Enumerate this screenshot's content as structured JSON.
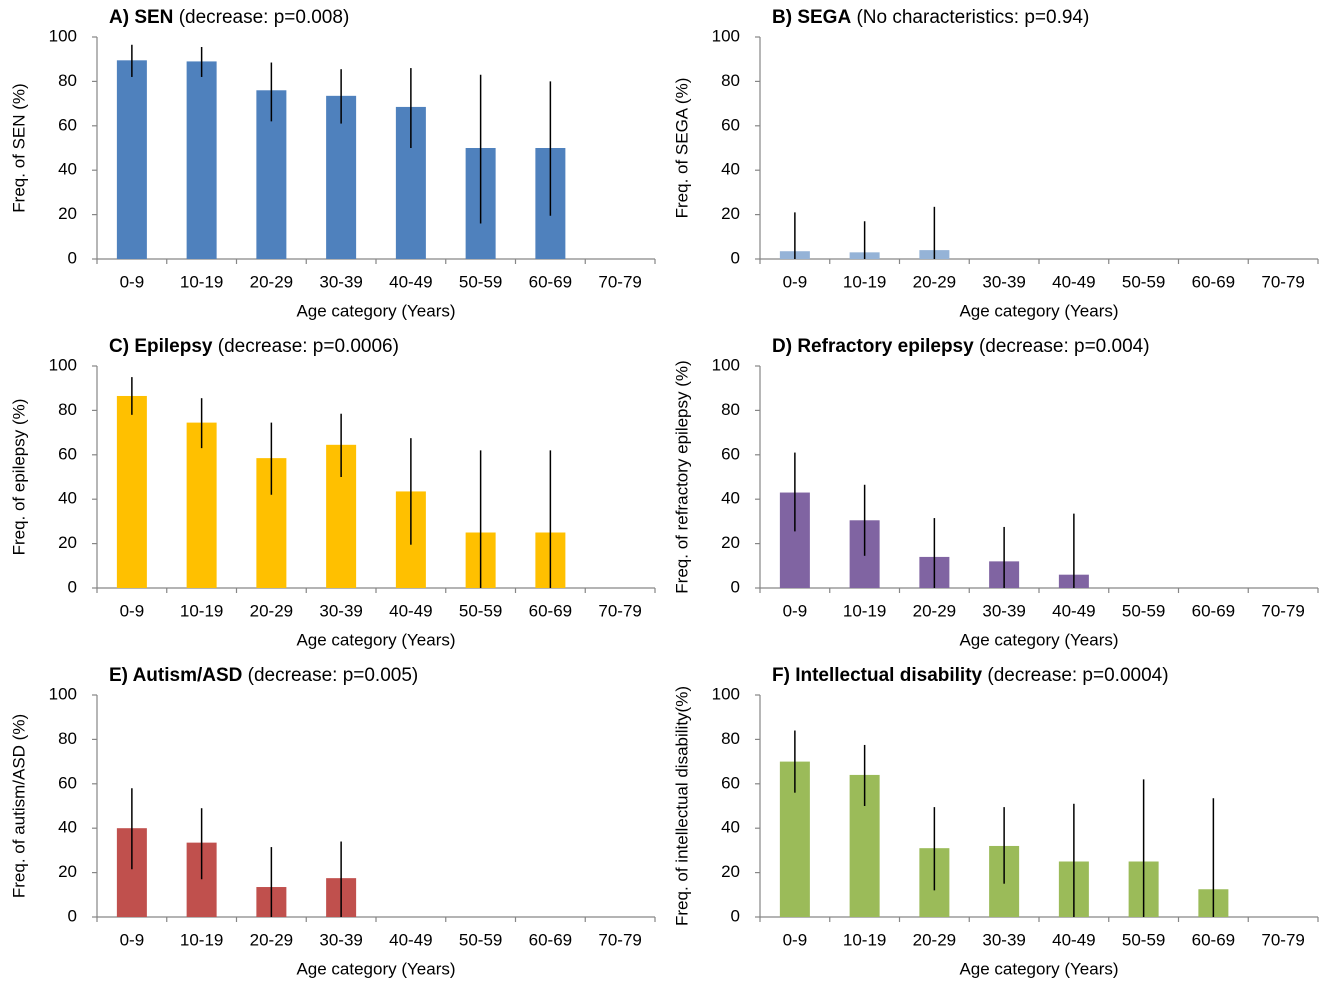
{
  "chart_data": [
    {
      "type": "bar",
      "title": "A) SEN",
      "subtitle": "(decrease: p=0.008)",
      "x_label": "Age category (Years)",
      "y_label": "Freq. of SEN (%)",
      "categories": [
        "0-9",
        "10-19",
        "20-29",
        "30-39",
        "40-49",
        "50-59",
        "60-69",
        "70-79"
      ],
      "values": [
        89.5,
        89,
        76,
        73.5,
        68.5,
        50,
        50,
        0
      ],
      "ci_low": [
        82,
        82,
        62,
        61,
        50,
        16,
        19.5,
        null
      ],
      "ci_high": [
        96.5,
        95.5,
        88.5,
        85.5,
        86,
        83,
        80,
        null
      ],
      "color": "#4f81bd",
      "ylim": [
        0,
        100
      ],
      "yticks": [
        0,
        20,
        40,
        60,
        80,
        100
      ]
    },
    {
      "type": "bar",
      "title": "B) SEGA",
      "subtitle": "(No characteristics: p=0.94)",
      "x_label": "Age category (Years)",
      "y_label": "Freq. of SEGA (%)",
      "categories": [
        "0-9",
        "10-19",
        "20-29",
        "30-39",
        "40-49",
        "50-59",
        "60-69",
        "70-79"
      ],
      "values": [
        3.5,
        3,
        4,
        0,
        0,
        0,
        0,
        0
      ],
      "ci_low": [
        0,
        0,
        0,
        null,
        null,
        null,
        null,
        null
      ],
      "ci_high": [
        21,
        17,
        23.5,
        null,
        null,
        null,
        null,
        null
      ],
      "color": "#95b3d7",
      "ylim": [
        0,
        100
      ],
      "yticks": [
        0,
        20,
        40,
        60,
        80,
        100
      ]
    },
    {
      "type": "bar",
      "title": "C) Epilepsy",
      "subtitle": "(decrease: p=0.0006)",
      "x_label": "Age category (Years)",
      "y_label": "Freq. of epilepsy (%)",
      "categories": [
        "0-9",
        "10-19",
        "20-29",
        "30-39",
        "40-49",
        "50-59",
        "60-69",
        "70-79"
      ],
      "values": [
        86.5,
        74.5,
        58.5,
        64.5,
        43.5,
        25,
        25,
        0
      ],
      "ci_low": [
        78,
        63,
        42,
        50,
        19.5,
        0,
        0,
        null
      ],
      "ci_high": [
        95,
        85.5,
        74.5,
        78.5,
        67.5,
        62,
        62,
        null
      ],
      "color": "#ffc000",
      "ylim": [
        0,
        100
      ],
      "yticks": [
        0,
        20,
        40,
        60,
        80,
        100
      ]
    },
    {
      "type": "bar",
      "title": "D) Refractory epilepsy",
      "subtitle": "(decrease: p=0.004)",
      "x_label": "Age category (Years)",
      "y_label": "Freq. of refractory epilepsy (%)",
      "categories": [
        "0-9",
        "10-19",
        "20-29",
        "30-39",
        "40-49",
        "50-59",
        "60-69",
        "70-79"
      ],
      "values": [
        43,
        30.5,
        14,
        12,
        6,
        0,
        0,
        0
      ],
      "ci_low": [
        25.5,
        14.5,
        0,
        0,
        0,
        null,
        null,
        null
      ],
      "ci_high": [
        61,
        46.5,
        31.5,
        27.5,
        33.5,
        null,
        null,
        null
      ],
      "color": "#8064a2",
      "ylim": [
        0,
        100
      ],
      "yticks": [
        0,
        20,
        40,
        60,
        80,
        100
      ]
    },
    {
      "type": "bar",
      "title": "E) Autism/ASD",
      "subtitle": "(decrease: p=0.005)",
      "x_label": "Age category (Years)",
      "y_label": "Freq. of autism/ASD (%)",
      "categories": [
        "0-9",
        "10-19",
        "20-29",
        "30-39",
        "40-49",
        "50-59",
        "60-69",
        "70-79"
      ],
      "values": [
        40,
        33.5,
        13.5,
        17.5,
        0,
        0,
        0,
        0
      ],
      "ci_low": [
        21.5,
        17,
        0,
        0,
        null,
        null,
        null,
        null
      ],
      "ci_high": [
        58,
        49,
        31.5,
        34,
        null,
        null,
        null,
        null
      ],
      "color": "#c0504d",
      "ylim": [
        0,
        100
      ],
      "yticks": [
        0,
        20,
        40,
        60,
        80,
        100
      ]
    },
    {
      "type": "bar",
      "title": "F) Intellectual disability",
      "subtitle": "(decrease: p=0.0004)",
      "x_label": "Age category (Years)",
      "y_label": "Freq. of intellectual disability(%)",
      "categories": [
        "0-9",
        "10-19",
        "20-29",
        "30-39",
        "40-49",
        "50-59",
        "60-69",
        "70-79"
      ],
      "values": [
        70,
        64,
        31,
        32,
        25,
        25,
        12.5,
        0
      ],
      "ci_low": [
        56,
        50,
        12,
        15,
        0,
        0,
        0,
        null
      ],
      "ci_high": [
        84,
        77.5,
        49.5,
        49.5,
        51,
        62,
        53.5,
        null
      ],
      "color": "#9bbb59",
      "ylim": [
        0,
        100
      ],
      "yticks": [
        0,
        20,
        40,
        60,
        80,
        100
      ]
    }
  ]
}
